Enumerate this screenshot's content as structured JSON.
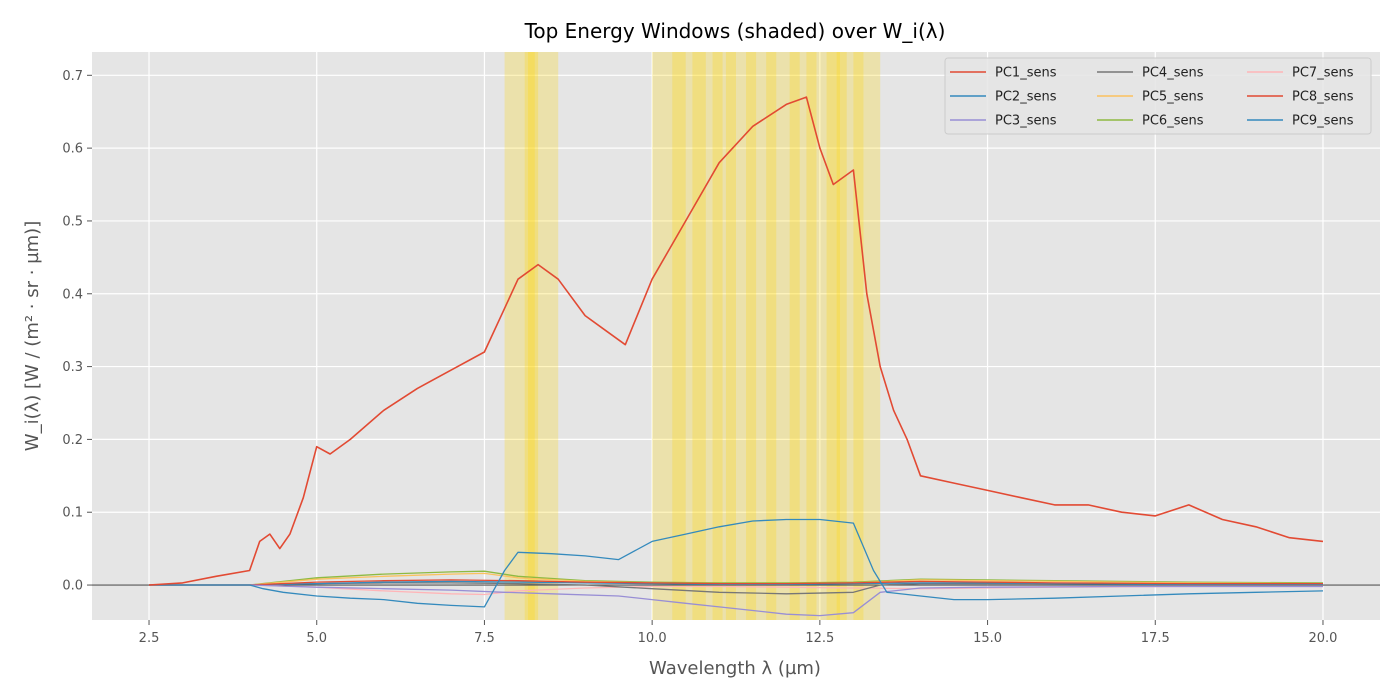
{
  "chart_data": {
    "type": "line",
    "title": "Top Energy Windows (shaded) over W_i(λ)",
    "xlabel": "Wavelength λ (µm)",
    "ylabel": "W_i(λ) [W / (m² · sr · µm)]",
    "xlim": [
      1.65,
      20.85
    ],
    "ylim": [
      -0.048,
      0.732
    ],
    "xticks": [
      2.5,
      5.0,
      7.5,
      10.0,
      12.5,
      15.0,
      17.5,
      20.0
    ],
    "xtick_labels": [
      "2.5",
      "5.0",
      "7.5",
      "10.0",
      "12.5",
      "15.0",
      "17.5",
      "20.0"
    ],
    "yticks": [
      0.0,
      0.1,
      0.2,
      0.3,
      0.4,
      0.5,
      0.6,
      0.7
    ],
    "ytick_labels": [
      "0.0",
      "0.1",
      "0.2",
      "0.3",
      "0.4",
      "0.5",
      "0.6",
      "0.7"
    ],
    "grid": true,
    "legend_position": "top-right",
    "legend_columns": 3,
    "style": "ggplot",
    "zero_line": true,
    "shaded_windows": [
      [
        7.8,
        8.6
      ],
      [
        8.1,
        8.3
      ],
      [
        8.15,
        8.25
      ],
      [
        10.0,
        13.4
      ],
      [
        10.3,
        10.5
      ],
      [
        10.6,
        10.8
      ],
      [
        10.9,
        11.05
      ],
      [
        11.1,
        11.25
      ],
      [
        11.4,
        11.55
      ],
      [
        11.7,
        11.85
      ],
      [
        12.05,
        12.2
      ],
      [
        12.3,
        12.45
      ],
      [
        12.6,
        12.8
      ],
      [
        12.75,
        12.9
      ],
      [
        13.0,
        13.15
      ]
    ],
    "series": [
      {
        "name": "PC1_sens",
        "color": "#E24A33",
        "x": [
          2.5,
          3.0,
          3.5,
          4.0,
          4.15,
          4.3,
          4.45,
          4.6,
          4.8,
          5.0,
          5.2,
          5.5,
          6.0,
          6.5,
          7.0,
          7.5,
          7.8,
          8.0,
          8.3,
          8.6,
          9.0,
          9.3,
          9.6,
          10.0,
          10.5,
          11.0,
          11.5,
          12.0,
          12.3,
          12.5,
          12.7,
          13.0,
          13.2,
          13.4,
          13.6,
          13.8,
          14.0,
          14.5,
          15.0,
          15.5,
          16.0,
          16.5,
          17.0,
          17.5,
          18.0,
          18.5,
          19.0,
          19.5,
          20.0
        ],
        "y": [
          0.0,
          0.003,
          0.012,
          0.02,
          0.06,
          0.07,
          0.05,
          0.07,
          0.12,
          0.19,
          0.18,
          0.2,
          0.24,
          0.27,
          0.295,
          0.32,
          0.38,
          0.42,
          0.44,
          0.42,
          0.37,
          0.35,
          0.33,
          0.42,
          0.5,
          0.58,
          0.63,
          0.66,
          0.67,
          0.6,
          0.55,
          0.57,
          0.4,
          0.3,
          0.24,
          0.2,
          0.15,
          0.14,
          0.13,
          0.12,
          0.11,
          0.11,
          0.1,
          0.095,
          0.11,
          0.09,
          0.08,
          0.065,
          0.06
        ]
      },
      {
        "name": "PC2_sens",
        "color": "#348ABD",
        "x": [
          2.5,
          4.0,
          4.2,
          4.5,
          5.0,
          5.5,
          6.0,
          6.5,
          7.0,
          7.5,
          7.8,
          8.0,
          8.5,
          9.0,
          9.5,
          10.0,
          10.5,
          11.0,
          11.5,
          12.0,
          12.5,
          13.0,
          13.3,
          13.5,
          14.0,
          14.5,
          15.0,
          16.0,
          17.0,
          18.0,
          19.0,
          20.0
        ],
        "y": [
          0.0,
          0.0,
          -0.005,
          -0.01,
          -0.015,
          -0.018,
          -0.02,
          -0.025,
          -0.028,
          -0.03,
          0.02,
          0.045,
          0.043,
          0.04,
          0.035,
          0.06,
          0.07,
          0.08,
          0.088,
          0.09,
          0.09,
          0.085,
          0.02,
          -0.01,
          -0.015,
          -0.02,
          -0.02,
          -0.018,
          -0.015,
          -0.012,
          -0.01,
          -0.008
        ]
      },
      {
        "name": "PC3_sens",
        "color": "#988ED5",
        "x": [
          2.5,
          4.0,
          5.0,
          6.0,
          7.0,
          7.8,
          8.5,
          9.5,
          10.0,
          10.5,
          11.0,
          11.5,
          12.0,
          12.5,
          13.0,
          13.4,
          14.0,
          15.0,
          17.0,
          20.0
        ],
        "y": [
          0.0,
          0.0,
          -0.003,
          -0.005,
          -0.007,
          -0.01,
          -0.012,
          -0.015,
          -0.02,
          -0.025,
          -0.03,
          -0.035,
          -0.04,
          -0.042,
          -0.038,
          -0.01,
          -0.004,
          -0.003,
          -0.002,
          -0.002
        ]
      },
      {
        "name": "PC4_sens",
        "color": "#777777",
        "x": [
          2.5,
          4.0,
          5.0,
          6.0,
          7.0,
          8.0,
          9.0,
          10.0,
          11.0,
          12.0,
          13.0,
          13.4,
          14.0,
          16.0,
          18.0,
          20.0
        ],
        "y": [
          0.0,
          0.0,
          0.002,
          0.003,
          0.003,
          0.002,
          0.0,
          -0.005,
          -0.01,
          -0.012,
          -0.01,
          0.0,
          0.002,
          0.002,
          0.001,
          0.001
        ]
      },
      {
        "name": "PC5_sens",
        "color": "#FBC15E",
        "x": [
          2.5,
          4.0,
          5.0,
          6.0,
          7.0,
          7.5,
          8.0,
          9.0,
          10.0,
          11.0,
          12.0,
          13.0,
          14.0,
          15.0,
          16.0,
          18.0,
          20.0
        ],
        "y": [
          0.0,
          0.0,
          0.008,
          0.012,
          0.015,
          0.016,
          0.01,
          0.005,
          0.003,
          0.002,
          0.002,
          0.003,
          0.007,
          0.006,
          0.005,
          0.003,
          0.002
        ]
      },
      {
        "name": "PC6_sens",
        "color": "#8EBA42",
        "x": [
          2.5,
          4.0,
          5.0,
          6.0,
          7.0,
          7.5,
          8.0,
          9.0,
          10.0,
          11.0,
          12.0,
          13.0,
          14.0,
          15.0,
          16.0,
          18.0,
          20.0
        ],
        "y": [
          0.0,
          0.0,
          0.01,
          0.015,
          0.018,
          0.019,
          0.012,
          0.006,
          0.004,
          0.003,
          0.003,
          0.004,
          0.008,
          0.007,
          0.006,
          0.004,
          0.003
        ]
      },
      {
        "name": "PC7_sens",
        "color": "#FFB5B8",
        "x": [
          2.5,
          4.0,
          5.0,
          6.0,
          7.0,
          7.5,
          8.0,
          9.0,
          10.0,
          11.0,
          12.0,
          13.0,
          14.0,
          15.0,
          16.0,
          18.0,
          20.0
        ],
        "y": [
          0.0,
          0.0,
          -0.003,
          -0.008,
          -0.012,
          -0.013,
          -0.008,
          -0.004,
          -0.002,
          -0.002,
          -0.003,
          -0.004,
          -0.005,
          -0.004,
          -0.003,
          -0.002,
          -0.002
        ]
      },
      {
        "name": "PC8_sens",
        "color": "#E24A33",
        "x": [
          2.5,
          4.0,
          5.0,
          6.0,
          7.0,
          8.0,
          9.0,
          10.0,
          11.0,
          12.0,
          13.0,
          14.0,
          15.0,
          16.0,
          18.0,
          20.0
        ],
        "y": [
          0.0,
          0.0,
          0.004,
          0.006,
          0.007,
          0.006,
          0.004,
          0.003,
          0.002,
          0.002,
          0.003,
          0.005,
          0.004,
          0.003,
          0.002,
          0.002
        ]
      },
      {
        "name": "PC9_sens",
        "color": "#348ABD",
        "x": [
          2.5,
          4.0,
          5.0,
          6.0,
          7.0,
          8.0,
          9.0,
          10.0,
          11.0,
          12.0,
          13.0,
          14.0,
          15.0,
          16.0,
          18.0,
          20.0
        ],
        "y": [
          0.0,
          0.0,
          0.002,
          0.004,
          0.005,
          0.004,
          0.003,
          0.002,
          0.001,
          0.001,
          0.002,
          0.003,
          0.003,
          0.002,
          0.001,
          0.001
        ]
      }
    ]
  }
}
